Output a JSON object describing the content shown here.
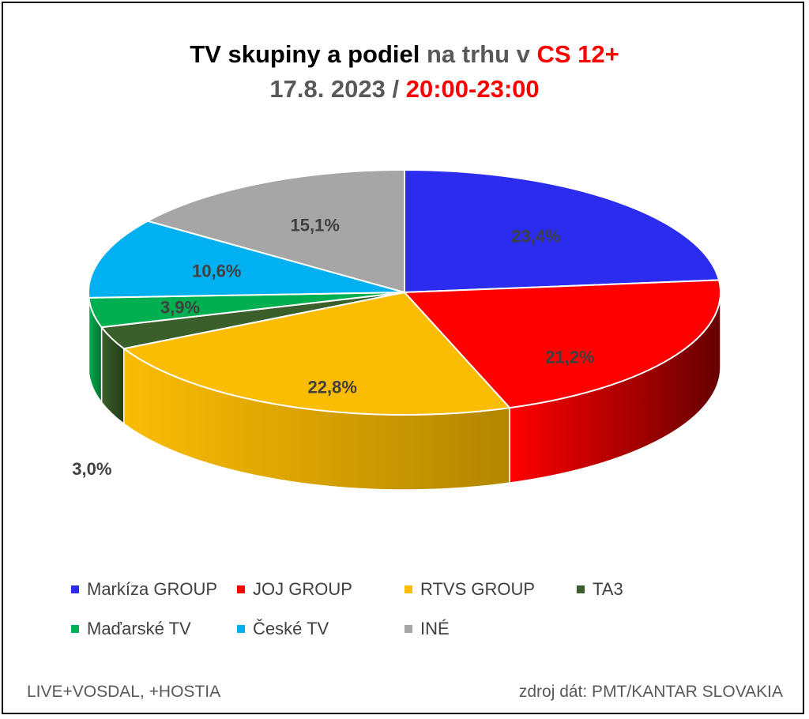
{
  "title": {
    "line1_part1": "TV skupiny a podiel",
    "line1_part2": " na trhu v ",
    "line1_part3": "CS 12+",
    "line2_part1": "17.8. 2023 / ",
    "line2_part2": "20:00-23:00"
  },
  "chart_data": {
    "type": "pie",
    "title": "TV skupiny a podiel na trhu v CS 12+ 17.8. 2023 / 20:00-23:00",
    "slices": [
      {
        "label": "Markíza GROUP",
        "value": 23.4,
        "value_label": "23,4%",
        "color": "#2b2cee",
        "side_color": "#1a1a8f"
      },
      {
        "label": "JOJ GROUP",
        "value": 21.2,
        "value_label": "21,2%",
        "color": "#ff0000",
        "side_color": "#660000"
      },
      {
        "label": "RTVS GROUP",
        "value": 22.8,
        "value_label": "22,8%",
        "color": "#fbbc04",
        "side_color": "#b38600"
      },
      {
        "label": "TA3",
        "value": 3.0,
        "value_label": "3,0%",
        "color": "#3a5f2b",
        "side_color": "#253d1a"
      },
      {
        "label": "Maďarské  TV",
        "value": 3.9,
        "value_label": "3,9%",
        "color": "#00b050",
        "side_color": "#007030"
      },
      {
        "label": "České  TV",
        "value": 10.6,
        "value_label": "10,6%",
        "color": "#00b0f0",
        "side_color": "#0070a0"
      },
      {
        "label": "INÉ",
        "value": 15.1,
        "value_label": "15,1%",
        "color": "#a6a6a6",
        "side_color": "#666666"
      }
    ],
    "legend_position": "bottom"
  },
  "footer": {
    "left": "LIVE+VOSDAL, +HOSTIA",
    "right": "zdroj dát: PMT/KANTAR SLOVAKIA"
  }
}
